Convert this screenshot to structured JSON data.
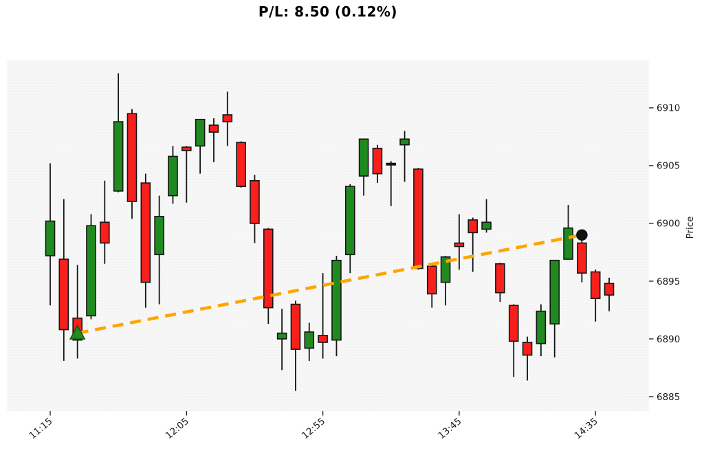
{
  "title": "P/L: 8.50 (0.12%)",
  "chart_data": {
    "type": "candlestick",
    "title": "P/L: 8.50 (0.12%)",
    "xlabel": "",
    "ylabel": "Price",
    "ylim": [
      6883.75,
      6914.1
    ],
    "grid": false,
    "legend": "none",
    "x_ticks": {
      "indices": [
        0,
        10,
        20,
        30,
        40
      ],
      "labels": [
        "11:15",
        "12:05",
        "12:55",
        "13:45",
        "14:35"
      ]
    },
    "y_ticks": [
      6885,
      6890,
      6895,
      6900,
      6905,
      6910
    ],
    "candle_interval_minutes": 5,
    "candles": [
      {
        "t": "11:15",
        "o": 6897.2,
        "h": 6905.2,
        "l": 6892.9,
        "c": 6900.2
      },
      {
        "t": "11:20",
        "o": 6896.9,
        "h": 6902.1,
        "l": 6888.1,
        "c": 6890.8
      },
      {
        "t": "11:25",
        "o": 6891.8,
        "h": 6896.4,
        "l": 6888.3,
        "c": 6889.9
      },
      {
        "t": "11:30",
        "o": 6892.0,
        "h": 6900.8,
        "l": 6891.7,
        "c": 6899.8
      },
      {
        "t": "11:35",
        "o": 6900.1,
        "h": 6903.7,
        "l": 6896.5,
        "c": 6898.3
      },
      {
        "t": "11:40",
        "o": 6902.8,
        "h": 6913.0,
        "l": 6902.7,
        "c": 6908.8
      },
      {
        "t": "11:45",
        "o": 6909.5,
        "h": 6909.9,
        "l": 6900.4,
        "c": 6901.9
      },
      {
        "t": "11:50",
        "o": 6903.5,
        "h": 6904.3,
        "l": 6892.7,
        "c": 6894.9
      },
      {
        "t": "11:55",
        "o": 6897.3,
        "h": 6902.4,
        "l": 6893.0,
        "c": 6900.6
      },
      {
        "t": "12:00",
        "o": 6902.4,
        "h": 6906.7,
        "l": 6901.7,
        "c": 6905.8
      },
      {
        "t": "12:05",
        "o": 6906.6,
        "h": 6906.7,
        "l": 6901.8,
        "c": 6906.3
      },
      {
        "t": "12:10",
        "o": 6906.7,
        "h": 6909.0,
        "l": 6904.3,
        "c": 6909.0
      },
      {
        "t": "12:15",
        "o": 6908.5,
        "h": 6909.1,
        "l": 6905.3,
        "c": 6907.9
      },
      {
        "t": "12:20",
        "o": 6909.4,
        "h": 6911.4,
        "l": 6906.7,
        "c": 6908.8
      },
      {
        "t": "12:25",
        "o": 6907.0,
        "h": 6907.1,
        "l": 6903.1,
        "c": 6903.2
      },
      {
        "t": "12:30",
        "o": 6903.7,
        "h": 6904.2,
        "l": 6898.3,
        "c": 6900.0
      },
      {
        "t": "12:35",
        "o": 6899.5,
        "h": 6899.6,
        "l": 6891.3,
        "c": 6892.7
      },
      {
        "t": "12:40",
        "o": 6890.0,
        "h": 6892.6,
        "l": 6887.3,
        "c": 6890.5
      },
      {
        "t": "12:45",
        "o": 6893.0,
        "h": 6893.3,
        "l": 6885.5,
        "c": 6889.1
      },
      {
        "t": "12:50",
        "o": 6889.2,
        "h": 6891.4,
        "l": 6888.1,
        "c": 6890.6
      },
      {
        "t": "12:55",
        "o": 6890.3,
        "h": 6895.7,
        "l": 6888.3,
        "c": 6889.7
      },
      {
        "t": "13:00",
        "o": 6889.9,
        "h": 6897.2,
        "l": 6888.5,
        "c": 6896.8
      },
      {
        "t": "13:05",
        "o": 6897.3,
        "h": 6903.4,
        "l": 6895.7,
        "c": 6903.2
      },
      {
        "t": "13:10",
        "o": 6904.1,
        "h": 6907.3,
        "l": 6902.4,
        "c": 6907.3
      },
      {
        "t": "13:15",
        "o": 6906.5,
        "h": 6906.8,
        "l": 6903.5,
        "c": 6904.3
      },
      {
        "t": "13:20",
        "o": 6905.2,
        "h": 6905.4,
        "l": 6901.5,
        "c": 6905.2
      },
      {
        "t": "13:25",
        "o": 6906.8,
        "h": 6908.0,
        "l": 6903.6,
        "c": 6907.3
      },
      {
        "t": "13:30",
        "o": 6904.7,
        "h": 6904.8,
        "l": 6896.0,
        "c": 6896.1
      },
      {
        "t": "13:35",
        "o": 6896.3,
        "h": 6896.5,
        "l": 6892.7,
        "c": 6893.9
      },
      {
        "t": "13:40",
        "o": 6894.9,
        "h": 6897.2,
        "l": 6892.9,
        "c": 6897.1
      },
      {
        "t": "13:45",
        "o": 6898.3,
        "h": 6900.8,
        "l": 6896.0,
        "c": 6898.0
      },
      {
        "t": "13:50",
        "o": 6900.3,
        "h": 6900.5,
        "l": 6895.8,
        "c": 6899.2
      },
      {
        "t": "13:55",
        "o": 6899.5,
        "h": 6902.1,
        "l": 6899.2,
        "c": 6900.1
      },
      {
        "t": "14:00",
        "o": 6896.5,
        "h": 6896.6,
        "l": 6893.2,
        "c": 6894.0
      },
      {
        "t": "14:05",
        "o": 6892.9,
        "h": 6893.0,
        "l": 6886.7,
        "c": 6889.8
      },
      {
        "t": "14:10",
        "o": 6889.7,
        "h": 6890.2,
        "l": 6886.4,
        "c": 6888.6
      },
      {
        "t": "14:15",
        "o": 6889.6,
        "h": 6893.0,
        "l": 6888.5,
        "c": 6892.4
      },
      {
        "t": "14:20",
        "o": 6891.3,
        "h": 6896.8,
        "l": 6888.4,
        "c": 6896.8
      },
      {
        "t": "14:25",
        "o": 6896.9,
        "h": 6901.6,
        "l": 6896.9,
        "c": 6899.6
      },
      {
        "t": "14:30",
        "o": 6898.3,
        "h": 6898.5,
        "l": 6894.9,
        "c": 6895.7
      },
      {
        "t": "14:35",
        "o": 6895.8,
        "h": 6896.0,
        "l": 6891.5,
        "c": 6893.5
      },
      {
        "t": "14:40",
        "o": 6894.8,
        "h": 6895.3,
        "l": 6892.4,
        "c": 6893.8
      }
    ],
    "trade": {
      "entry_time": "11:25",
      "entry_price": 6890.5,
      "exit_time": "14:30",
      "exit_price": 6899.0,
      "pl": "8.50",
      "pl_pct": "0.12%"
    },
    "colors": {
      "up": "#1f8b1f",
      "down": "#f81f1c",
      "edge": "#151515",
      "doji": "#151515",
      "trade_line": "#ffa500",
      "entry_marker": "#1e8c1e",
      "entry_marker_edge": "#0b530b",
      "exit_marker": "#111111",
      "plot_bg": "#f7f7f7",
      "plot_dots": "#e9e9e9",
      "tick_text": "#1a1a1a"
    }
  }
}
